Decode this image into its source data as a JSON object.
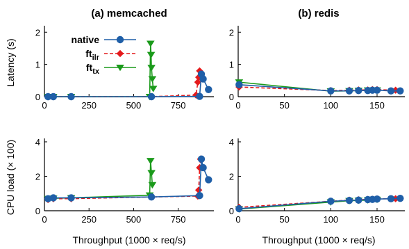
{
  "chart_data": [
    {
      "id": "memcached_latency",
      "type": "line",
      "title": "(a) memcached",
      "xlabel": "",
      "ylabel": "Latency (s)",
      "xlim": [
        0,
        950
      ],
      "ylim": [
        0,
        2.2
      ],
      "xticks": [
        0,
        250,
        500,
        750
      ],
      "yticks": [
        0,
        1,
        2
      ],
      "series": [
        {
          "name": "native",
          "x": [
            20,
            50,
            150,
            600,
            870,
            880,
            890,
            920
          ],
          "y": [
            0.0,
            0.0,
            0.0,
            0.0,
            0.01,
            0.7,
            0.55,
            0.22
          ]
        },
        {
          "name": "ftilr",
          "x": [
            20,
            50,
            150,
            600,
            850,
            860,
            865,
            870
          ],
          "y": [
            0.0,
            0.0,
            0.0,
            0.0,
            0.05,
            0.45,
            0.6,
            0.8
          ]
        },
        {
          "name": "fttx",
          "x": [
            20,
            50,
            150,
            590,
            595,
            598,
            600,
            605,
            610
          ],
          "y": [
            0.0,
            0.0,
            0.0,
            0.0,
            1.65,
            1.3,
            0.9,
            0.55,
            0.25
          ]
        }
      ]
    },
    {
      "id": "redis_latency",
      "type": "line",
      "title": "(b) redis",
      "xlabel": "",
      "ylabel": "",
      "xlim": [
        0,
        180
      ],
      "ylim": [
        0,
        2.2
      ],
      "xticks": [
        0,
        50,
        100,
        150
      ],
      "yticks": [
        0,
        1,
        2
      ],
      "series": [
        {
          "name": "native",
          "x": [
            1,
            100,
            120,
            130,
            140,
            145,
            150,
            165,
            175
          ],
          "y": [
            0.37,
            0.18,
            0.18,
            0.19,
            0.19,
            0.2,
            0.2,
            0.18,
            0.18
          ]
        },
        {
          "name": "ftilr",
          "x": [
            1,
            100,
            120,
            130,
            140,
            145,
            150,
            170
          ],
          "y": [
            0.3,
            0.19,
            0.2,
            0.21,
            0.21,
            0.22,
            0.22,
            0.2
          ]
        },
        {
          "name": "fttx",
          "x": [
            1,
            100,
            120,
            130,
            140,
            150
          ],
          "y": [
            0.45,
            0.17,
            0.18,
            0.19,
            0.2,
            0.2
          ]
        }
      ]
    },
    {
      "id": "memcached_cpu",
      "type": "line",
      "title": "",
      "xlabel": "Throughput (1000 × req/s)",
      "ylabel": "CPU load (× 100)",
      "xlim": [
        0,
        950
      ],
      "ylim": [
        0,
        4.2
      ],
      "xticks": [
        0,
        250,
        500,
        750
      ],
      "yticks": [
        0,
        2,
        4
      ],
      "series": [
        {
          "name": "native",
          "x": [
            20,
            50,
            150,
            600,
            870,
            880,
            890,
            920
          ],
          "y": [
            0.7,
            0.75,
            0.75,
            0.8,
            0.88,
            3.0,
            2.5,
            1.8
          ]
        },
        {
          "name": "ftilr",
          "x": [
            20,
            50,
            150,
            600,
            860,
            865,
            870,
            875
          ],
          "y": [
            0.65,
            0.7,
            0.7,
            0.8,
            0.85,
            1.2,
            2.5,
            3.0
          ]
        },
        {
          "name": "fttx",
          "x": [
            20,
            50,
            150,
            590,
            595,
            600,
            605
          ],
          "y": [
            0.7,
            0.72,
            0.75,
            0.9,
            2.9,
            2.2,
            1.5
          ]
        }
      ]
    },
    {
      "id": "redis_cpu",
      "type": "line",
      "title": "",
      "xlabel": "Throughput (1000 × req/s)",
      "ylabel": "",
      "xlim": [
        0,
        180
      ],
      "ylim": [
        0,
        4.2
      ],
      "xticks": [
        0,
        50,
        100,
        150
      ],
      "yticks": [
        0,
        2,
        4
      ],
      "series": [
        {
          "name": "native",
          "x": [
            1,
            100,
            120,
            130,
            140,
            145,
            150,
            165,
            175
          ],
          "y": [
            0.12,
            0.55,
            0.6,
            0.62,
            0.65,
            0.66,
            0.68,
            0.7,
            0.72
          ]
        },
        {
          "name": "ftilr",
          "x": [
            1,
            100,
            120,
            130,
            140,
            145,
            150,
            170
          ],
          "y": [
            0.2,
            0.55,
            0.62,
            0.64,
            0.66,
            0.67,
            0.69,
            0.7
          ]
        },
        {
          "name": "fttx",
          "x": [
            1,
            100,
            120,
            130,
            140,
            150
          ],
          "y": [
            0.1,
            0.5,
            0.58,
            0.6,
            0.62,
            0.65
          ]
        }
      ]
    }
  ],
  "legend": [
    {
      "key": "native",
      "label": "native",
      "sub": "",
      "color": "#1f5fa8",
      "marker": "circle",
      "dash": "solid"
    },
    {
      "key": "ftilr",
      "label": "ft",
      "sub": "ilr",
      "color": "#e41a1c",
      "marker": "diamond",
      "dash": "dashed"
    },
    {
      "key": "fttx",
      "label": "ft",
      "sub": "tx",
      "color": "#1a9a1a",
      "marker": "triangle-down",
      "dash": "solid"
    }
  ],
  "legend_placement": "inside top-right of memcached latency panel",
  "grid": false
}
